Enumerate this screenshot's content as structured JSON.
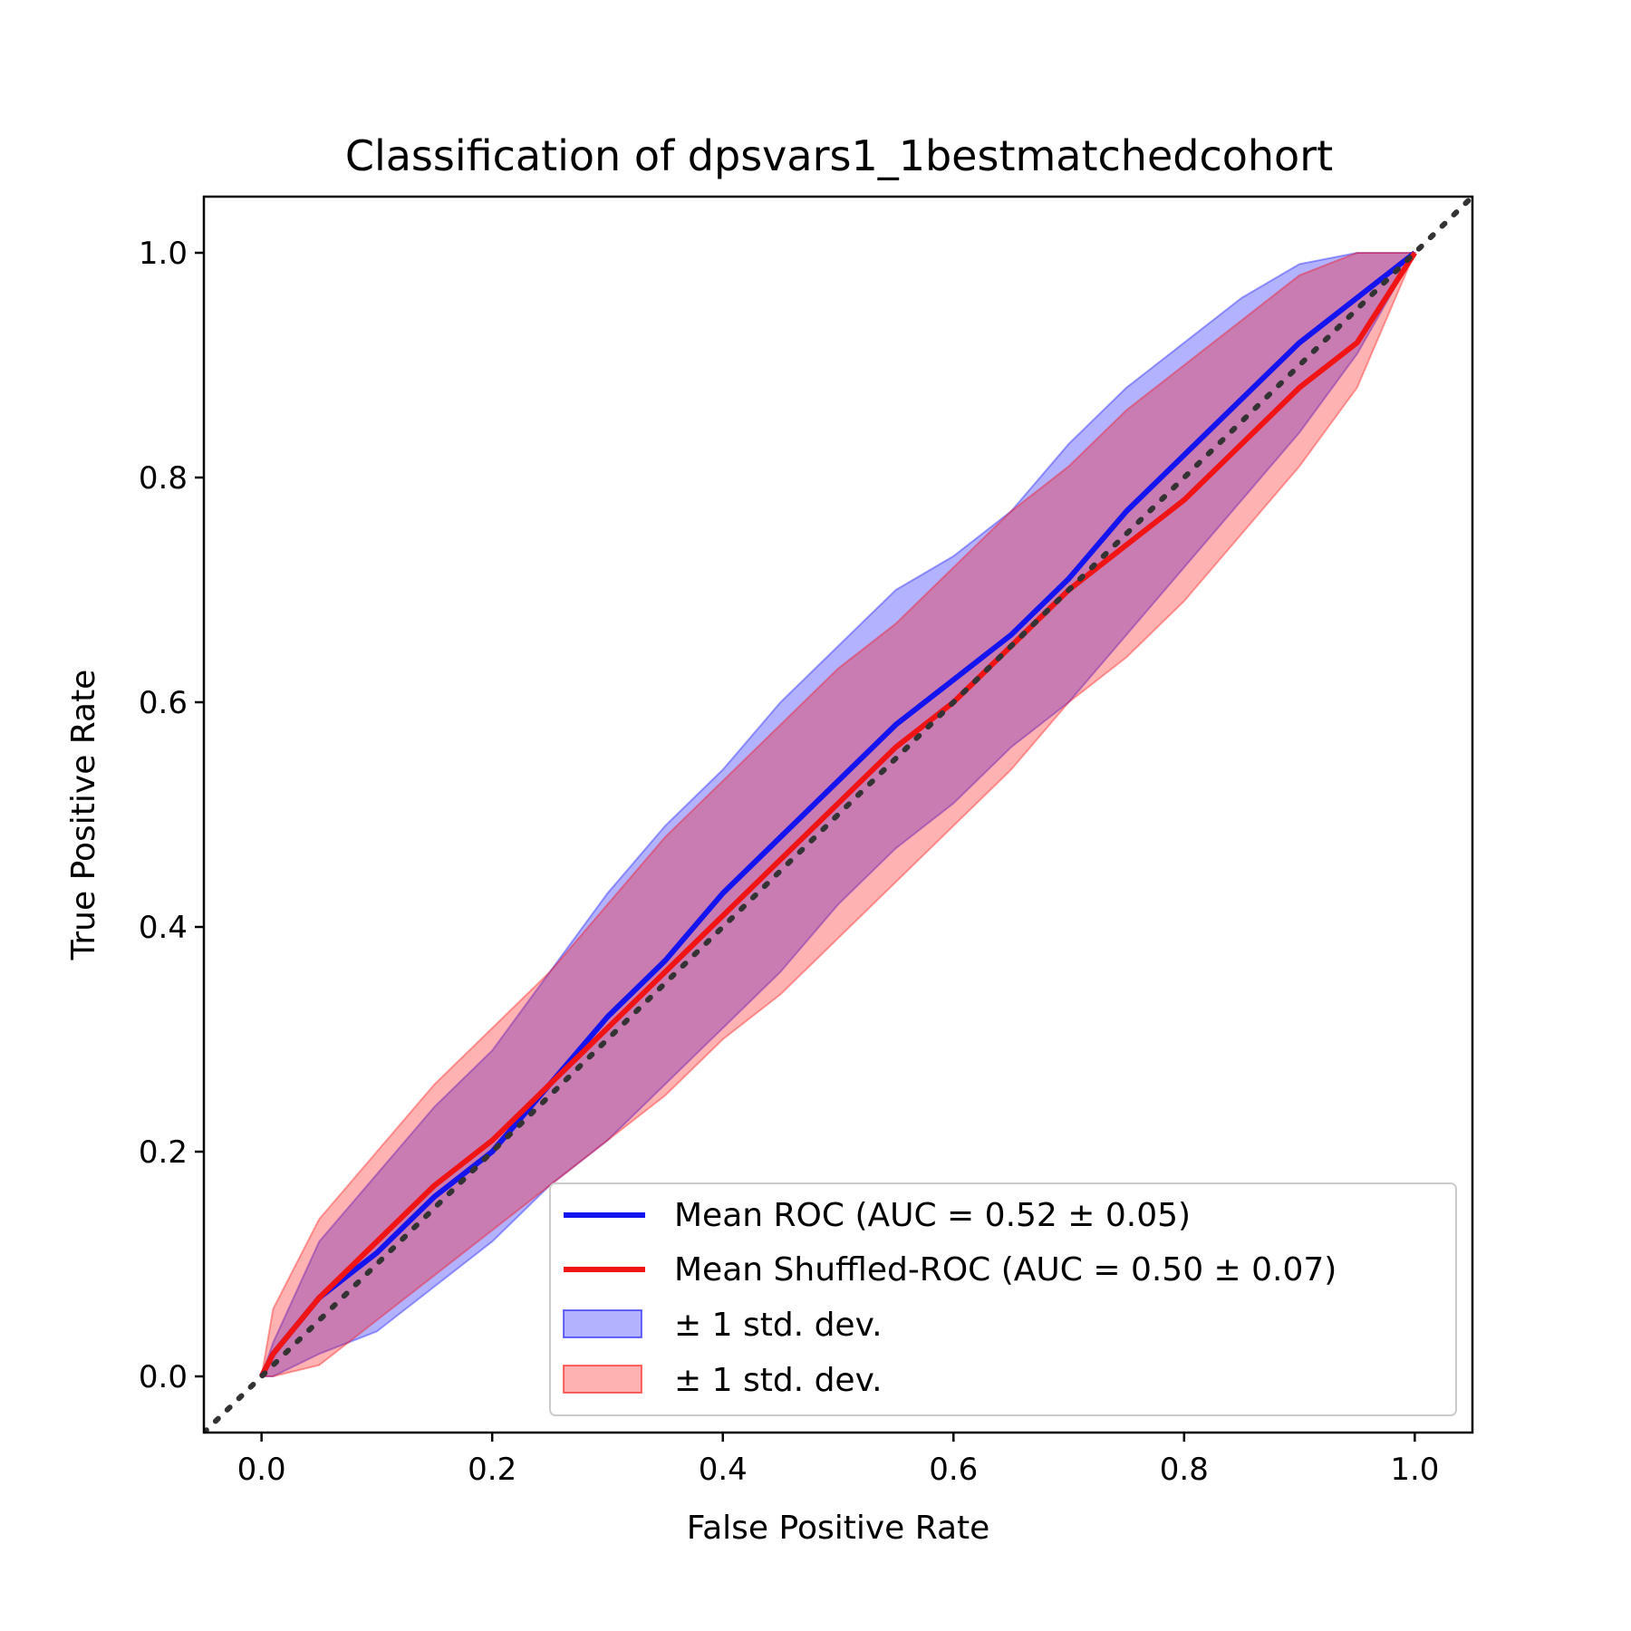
{
  "chart_data": {
    "type": "line",
    "title": "Classification of dpsvars1_1bestmatchedcohort",
    "xlabel": "False Positive Rate",
    "ylabel": "True Positive Rate",
    "xlim": [
      -0.05,
      1.05
    ],
    "ylim": [
      -0.05,
      1.05
    ],
    "xticks": [
      "0.0",
      "0.2",
      "0.4",
      "0.6",
      "0.8",
      "1.0"
    ],
    "yticks": [
      "0.0",
      "0.2",
      "0.4",
      "0.6",
      "0.8",
      "1.0"
    ],
    "grid": false,
    "legend_position": "lower-right",
    "series": [
      {
        "name": "Mean ROC (AUC = 0.52 ± 0.05)",
        "color": "#0000ff",
        "x": [
          0,
          0.01,
          0.05,
          0.1,
          0.15,
          0.2,
          0.25,
          0.3,
          0.35,
          0.4,
          0.45,
          0.5,
          0.55,
          0.6,
          0.65,
          0.7,
          0.75,
          0.8,
          0.85,
          0.9,
          0.95,
          1.0
        ],
        "y": [
          0,
          0.02,
          0.07,
          0.11,
          0.16,
          0.2,
          0.26,
          0.32,
          0.37,
          0.43,
          0.48,
          0.53,
          0.58,
          0.62,
          0.66,
          0.71,
          0.77,
          0.82,
          0.87,
          0.92,
          0.96,
          1.0
        ]
      },
      {
        "name": "Mean Shuffled-ROC (AUC = 0.50 ± 0.07)",
        "color": "#ff0000",
        "x": [
          0,
          0.01,
          0.05,
          0.1,
          0.15,
          0.2,
          0.25,
          0.3,
          0.35,
          0.4,
          0.45,
          0.5,
          0.55,
          0.6,
          0.65,
          0.7,
          0.75,
          0.8,
          0.85,
          0.9,
          0.95,
          1.0
        ],
        "y": [
          0,
          0.02,
          0.07,
          0.12,
          0.17,
          0.21,
          0.26,
          0.31,
          0.36,
          0.41,
          0.46,
          0.51,
          0.56,
          0.6,
          0.65,
          0.7,
          0.74,
          0.78,
          0.83,
          0.88,
          0.92,
          1.0
        ]
      },
      {
        "name": "± 1 std. dev.",
        "type": "band",
        "color": "#0000ff",
        "x": [
          0,
          0.01,
          0.05,
          0.1,
          0.15,
          0.2,
          0.25,
          0.3,
          0.35,
          0.4,
          0.45,
          0.5,
          0.55,
          0.6,
          0.65,
          0.7,
          0.75,
          0.8,
          0.85,
          0.9,
          0.95,
          1.0
        ],
        "upper": [
          0,
          0.03,
          0.12,
          0.18,
          0.24,
          0.29,
          0.36,
          0.43,
          0.49,
          0.54,
          0.6,
          0.65,
          0.7,
          0.73,
          0.77,
          0.83,
          0.88,
          0.92,
          0.96,
          0.99,
          1.0,
          1.0
        ],
        "lower": [
          0,
          0.0,
          0.02,
          0.04,
          0.08,
          0.12,
          0.17,
          0.21,
          0.26,
          0.31,
          0.36,
          0.42,
          0.47,
          0.51,
          0.56,
          0.6,
          0.66,
          0.72,
          0.78,
          0.84,
          0.91,
          1.0
        ]
      },
      {
        "name": "± 1 std. dev.",
        "type": "band",
        "color": "#ff0000",
        "x": [
          0,
          0.01,
          0.05,
          0.1,
          0.15,
          0.2,
          0.25,
          0.3,
          0.35,
          0.4,
          0.45,
          0.5,
          0.55,
          0.6,
          0.65,
          0.7,
          0.75,
          0.8,
          0.85,
          0.9,
          0.95,
          1.0
        ],
        "upper": [
          0,
          0.06,
          0.14,
          0.2,
          0.26,
          0.31,
          0.36,
          0.42,
          0.48,
          0.53,
          0.58,
          0.63,
          0.67,
          0.72,
          0.77,
          0.81,
          0.86,
          0.9,
          0.94,
          0.98,
          1.0,
          1.0
        ],
        "lower": [
          0,
          0.0,
          0.01,
          0.05,
          0.09,
          0.13,
          0.17,
          0.21,
          0.25,
          0.3,
          0.34,
          0.39,
          0.44,
          0.49,
          0.54,
          0.6,
          0.64,
          0.69,
          0.75,
          0.81,
          0.88,
          1.0
        ]
      },
      {
        "name": "",
        "type": "reference",
        "style": "dotted",
        "color": "#333333",
        "x": [
          -0.05,
          1.05
        ],
        "y": [
          -0.05,
          1.05
        ]
      }
    ]
  }
}
